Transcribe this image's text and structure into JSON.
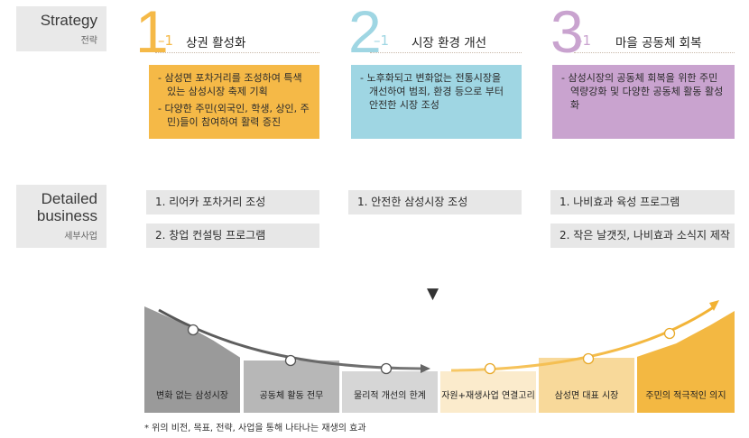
{
  "strategy_label": {
    "en": "Strategy",
    "ko": "전략"
  },
  "business_label": {
    "en_line1": "Detailed",
    "en_line2": "business",
    "ko": "세부사업"
  },
  "strategies": [
    {
      "number": "1",
      "suffix": "–1",
      "title": "상권 활성화",
      "color": "#f5b947",
      "bullets": [
        "- 삼성면 포차거리를 조성하여 특색있는 삼성시장 축제 기획",
        "- 다양한 주민(외국인, 학생, 상인, 주민)들이 참여하여 활력 증진"
      ],
      "details": [
        "1. 리어카 포차거리 조성",
        "2. 창업 컨설팅 프로그램"
      ]
    },
    {
      "number": "2",
      "suffix": "–1",
      "title": "시장 환경 개선",
      "color": "#9fd6e3",
      "bullets": [
        "- 노후화되고 변화없는 전통시장을 개선하여 범죄, 환경 등으로 부터 안전한 시장 조성"
      ],
      "details": [
        "1. 안전한 삼성시장 조성"
      ]
    },
    {
      "number": "3",
      "suffix": "–1",
      "title": "마을 공동체 회복",
      "color": "#c9a3cf",
      "bullets": [
        "- 삼성시장의 공동체 회복을 위한 주민역량강화 및 다양한 공동체 활동 활성화"
      ],
      "details": [
        "1. 나비효과 육성 프로그램",
        "2. 작은 날갯짓, 나비효과 소식지 제작"
      ]
    }
  ],
  "arrow_glyph": "▼",
  "curve_blocks": [
    {
      "label": "변화 없는 삼성시장",
      "color": "#9a9a9a"
    },
    {
      "label": "공동체 활동 전무",
      "color": "#b7b7b7"
    },
    {
      "label": "물리적 개선의 한계",
      "color": "#d6d6d6"
    },
    {
      "label": "자원+재생사업 연결고리",
      "color": "#fbebcc"
    },
    {
      "label": "삼성면 대표 시장",
      "color": "#f8d99a"
    },
    {
      "label": "주민의 적극적인 의지",
      "color": "#f3b842"
    }
  ],
  "footnote": "* 위의 비전, 목표, 전략, 사업을 통해 나타나는 재생의 효과"
}
